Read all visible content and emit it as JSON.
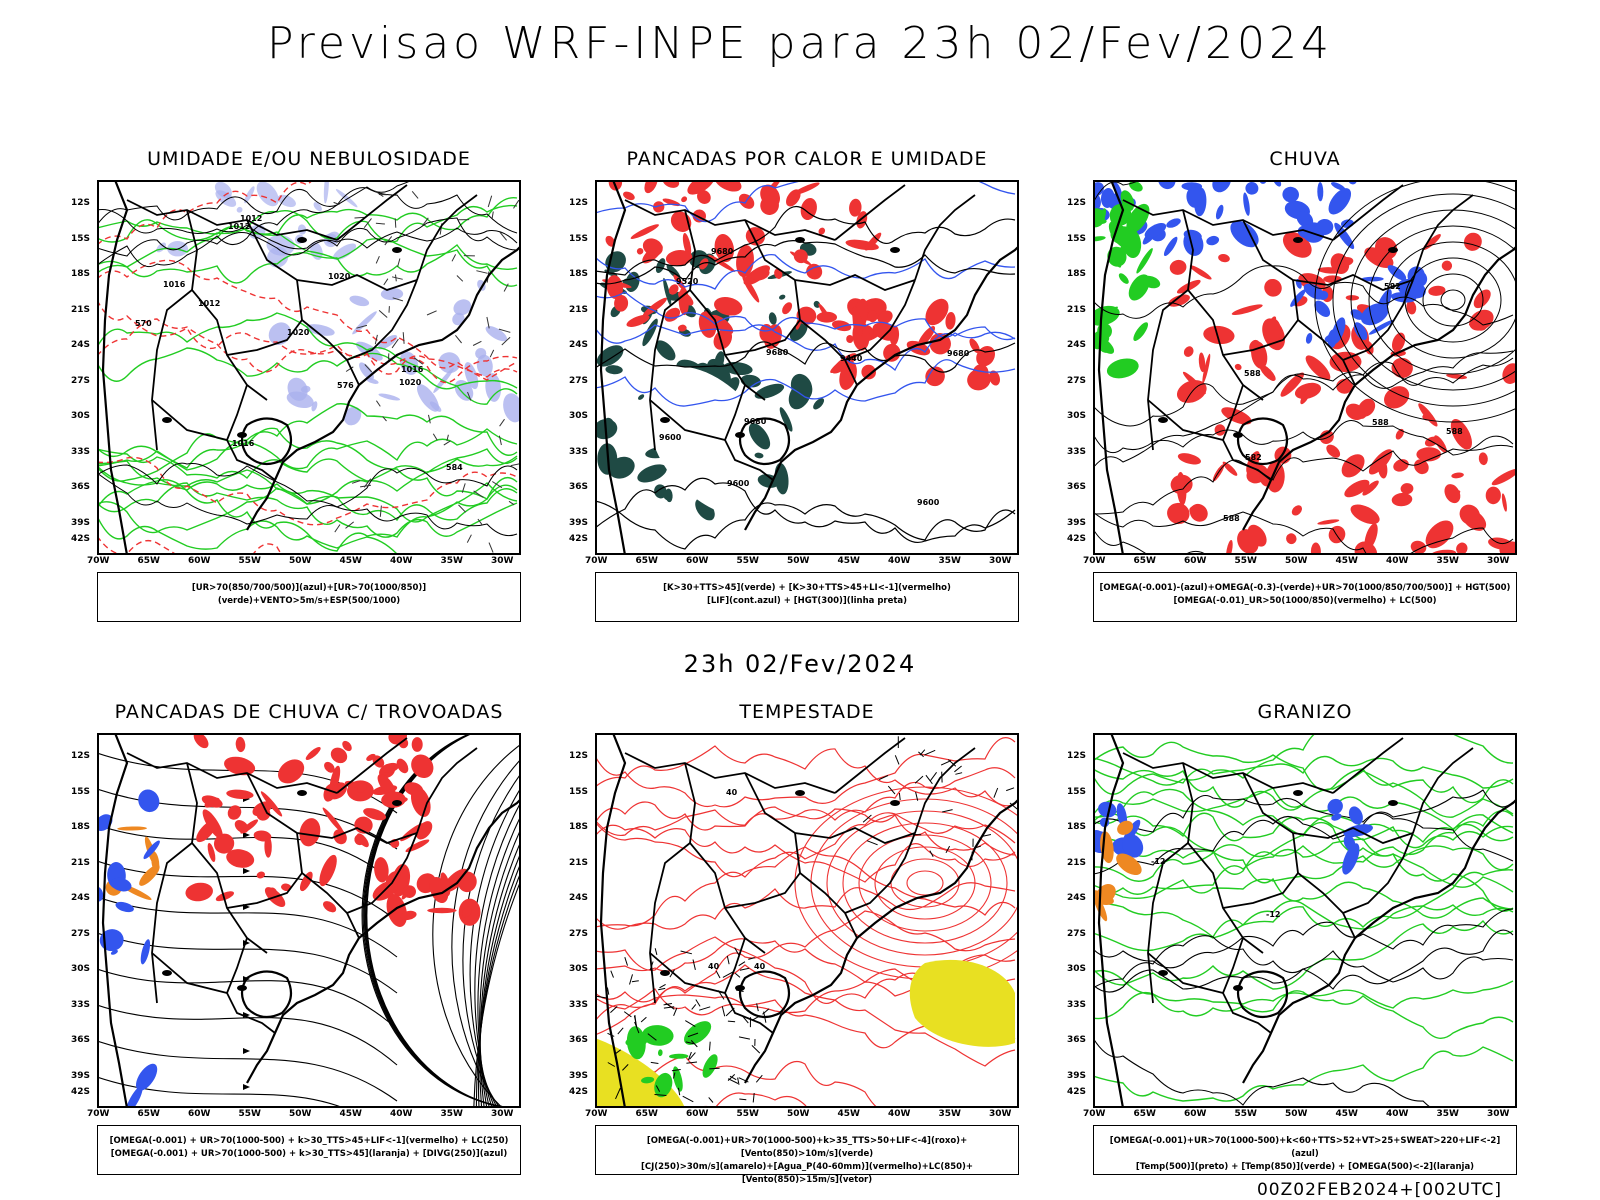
{
  "title": "Previsao WRF-INPE  para 23h 02/Fev/2024",
  "mid_time": "23h 02/Fev/2024",
  "footer": "00Z02FEB2024+[002UTC]",
  "lat_labels": [
    "12S",
    "15S",
    "18S",
    "21S",
    "24S",
    "27S",
    "30S",
    "33S",
    "36S",
    "39S",
    "42S"
  ],
  "lon_labels": [
    "70W",
    "65W",
    "60W",
    "55W",
    "50W",
    "45W",
    "40W",
    "35W",
    "30W"
  ],
  "colors": {
    "green": "#22cc22",
    "blue": "#3355ee",
    "red": "#ee3333",
    "dark": "#1f4a44",
    "lavender": "#aab0ee",
    "yellow": "#e8e022",
    "orange": "#ee8822",
    "purple": "#aa22cc"
  },
  "panels": [
    {
      "title": "UMIDADE E/OU NEBULOSIDADE",
      "legend": [
        "[UR>70(850/700/500)](azul)+[UR>70(1000/850)](verde)+VENTO>5m/s+ESP(500/1000)"
      ],
      "contour_labels": [
        "1012",
        "1016",
        "1020",
        "1012",
        "1016",
        "1020",
        "570",
        "576",
        "584",
        "1020",
        "1012",
        "1016"
      ]
    },
    {
      "title": "PANCADAS POR CALOR E UMIDADE",
      "legend": [
        "[K>30+TTS>45](verde) + [K>30+TTS>45+LI<-1](vermelho)",
        "[LIF](cont.azul) + [HGT(300)](linha preta)"
      ],
      "contour_labels": [
        "9680",
        "9680",
        "9680",
        "9600",
        "9600",
        "9520",
        "9440",
        "9600",
        "9680"
      ]
    },
    {
      "title": "CHUVA",
      "legend": [
        "[OMEGA(-0.001)-(azul)+OMEGA(-0.3)-(verde)+UR>70(1000/850/700/500)] + HGT(500)",
        "[OMEGA(-0.01)_UR>50(1000/850)(vermelho) + LC(500)"
      ],
      "contour_labels": [
        "588",
        "588",
        "588",
        "582",
        "588",
        "582"
      ]
    },
    {
      "title": "PANCADAS DE CHUVA C/ TROVOADAS",
      "legend": [
        "[OMEGA(-0.001) + UR>70(1000-500) + k>30_TTS>45+LIF<-1](vermelho) + LC(250)",
        "[OMEGA(-0.001) + UR>70(1000-500) + k>30_TTS>45](laranja) + [DIVG(250)](azul)"
      ],
      "contour_labels": []
    },
    {
      "title": "TEMPESTADE",
      "legend": [
        "[OMEGA(-0.001)+UR>70(1000-500)+k>35_TTS>50+LIF<-4](roxo)+[Vento(850)>10m/s](verde)",
        "[CJ(250)>30m/s](amarelo)+[Agua_P(40-60mm)](vermelho)+LC(850)+[Vento(850)>15m/s](vetor)"
      ],
      "contour_labels": [
        "40",
        "40",
        "40"
      ]
    },
    {
      "title": "GRANIZO",
      "legend": [
        "[OMEGA(-0.001)+UR>70(1000-500)+k<60+TTS>52+VT>25+SWEAT>220+LIF<-2](azul)",
        "[Temp(500)](preto) + [Temp(850)](verde) + [OMEGA(500)<-2](laranja)"
      ],
      "contour_labels": [
        "-12",
        "-12"
      ]
    }
  ]
}
